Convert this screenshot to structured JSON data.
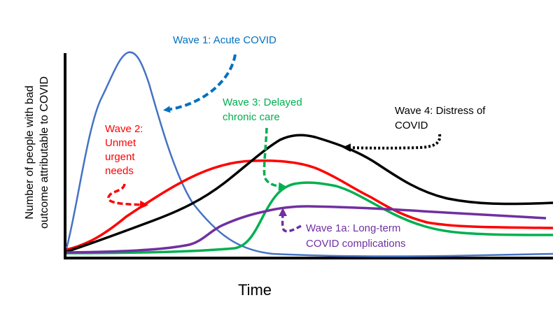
{
  "axes": {
    "ylabel_line1": "Number of people with bad",
    "ylabel_line2": "outcome attributable to COVID",
    "xlabel": "Time"
  },
  "labels": {
    "wave1": "Wave 1: Acute COVID",
    "wave2_line1": "Wave 2:",
    "wave2_line2": "Unmet",
    "wave2_line3": "urgent",
    "wave2_line4": "needs",
    "wave3_line1": "Wave 3: Delayed",
    "wave3_line2": "chronic care",
    "wave4_line1": "Wave 4: Distress of",
    "wave4_line2": "COVID",
    "wave1a_line1": "Wave 1a: Long-term",
    "wave1a_line2": "COVID complications"
  },
  "colors": {
    "wave1": "#4472C4",
    "wave2": "#FF0000",
    "wave3": "#00B050",
    "wave4": "#000000",
    "wave1a": "#7030A0",
    "wave1_arrow": "#0070C0",
    "axis": "#000000"
  }
}
